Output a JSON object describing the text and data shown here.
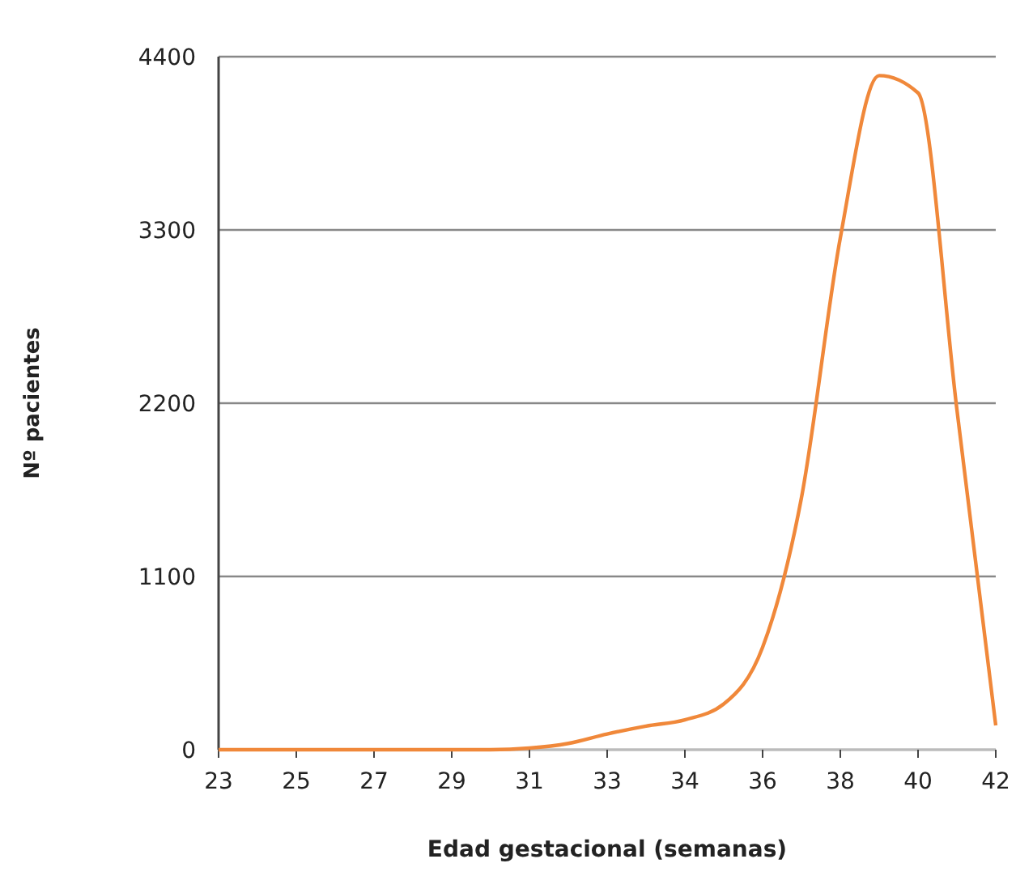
{
  "chart_data": {
    "type": "line",
    "xlabel": "Edad gestacional (semanas)",
    "ylabel": "Nº pacientes",
    "categories": [
      "23",
      null,
      "25",
      null,
      "27",
      null,
      "29",
      null,
      "31",
      null,
      "33",
      null,
      "34",
      null,
      "36",
      null,
      "38",
      null,
      "40",
      null,
      "42"
    ],
    "series": [
      {
        "color": "#f0883a",
        "values": [
          0,
          0,
          0,
          0,
          0,
          0,
          0,
          0,
          10,
          40,
          100,
          150,
          190,
          290,
          650,
          1600,
          3250,
          4280,
          4170,
          2160,
          154
        ]
      }
    ],
    "ylim": [
      0,
      4400
    ],
    "yticks": [
      0,
      1100,
      2200,
      3300,
      4400
    ],
    "grid": "y",
    "marker": "none",
    "line_style": "solid"
  }
}
